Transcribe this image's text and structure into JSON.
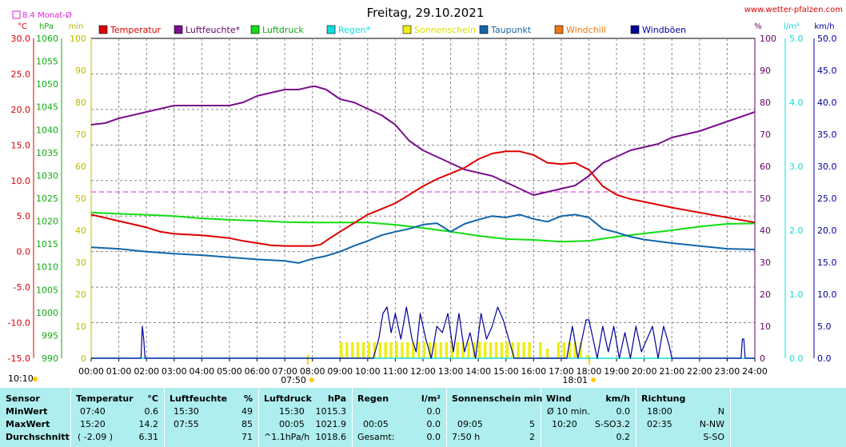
{
  "header": {
    "title": "Freitag, 29.10.2021",
    "site": "www.wetter-pfalzen.com",
    "monthly_avg": "8.4 Monat-Ø"
  },
  "axes": {
    "left_units": [
      "°C",
      "hPa",
      "min"
    ],
    "right_units": [
      "%",
      "l/m²",
      "km/h"
    ],
    "temp_ticks": [
      "30.0",
      "25.0",
      "20.0",
      "15.0",
      "10.0",
      "5.0",
      "0.0",
      "-5.0",
      "-10.0",
      "-15.0"
    ],
    "hpa_ticks": [
      "1060",
      "1055",
      "1050",
      "1045",
      "1040",
      "1035",
      "1030",
      "1025",
      "1020",
      "1015",
      "1010",
      "1005",
      "1000",
      "995",
      "990"
    ],
    "min_ticks": [
      "100",
      "90",
      "80",
      "70",
      "60",
      "50",
      "40",
      "30",
      "20",
      "10",
      "0"
    ],
    "pct_ticks": [
      "100",
      "90",
      "80",
      "70",
      "60",
      "50",
      "40",
      "30",
      "20",
      "10",
      "0"
    ],
    "rain_ticks": [
      "5.0",
      "4.0",
      "3.0",
      "2.0",
      "1.0",
      "0.0"
    ],
    "wind_ticks": [
      "50.0",
      "45.0",
      "40.0",
      "35.0",
      "30.0",
      "25.0",
      "20.0",
      "15.0",
      "10.0",
      "5.0",
      "0.0"
    ],
    "x_ticks": [
      "00:00",
      "01:00",
      "02:00",
      "03:00",
      "04:00",
      "05:00",
      "06:00",
      "07:00",
      "08:00",
      "09:00",
      "10:00",
      "11:00",
      "12:00",
      "13:00",
      "14:00",
      "15:00",
      "16:00",
      "17:00",
      "18:00",
      "19:00",
      "20:00",
      "21:00",
      "22:00",
      "23:00",
      "24:00"
    ],
    "sunrise": "07:50",
    "sunset": "18:01",
    "left_bottom_time": "10:10"
  },
  "colors": {
    "temperature": "#dd0000",
    "humidity": "#7a0f8c",
    "pressure": "#11dd11",
    "rain": "#11dddd",
    "sunshine": "#eeee11",
    "dewpoint": "#1166aa",
    "windchill": "#ee7711",
    "gusts": "#000099",
    "monthly_avg": "#dd22dd",
    "table_bg": "#aeeeee"
  },
  "chart_data": {
    "type": "line",
    "title": "Freitag, 29.10.2021",
    "x_unit": "hours",
    "xlim": [
      0,
      24
    ],
    "legend": [
      "Temperatur",
      "Luftfeuchte*",
      "Luftdruck",
      "Regen*",
      "Sonnenschein",
      "Taupunkt",
      "Windchill",
      "Windböen"
    ],
    "ylim": {
      "temp": [
        -15,
        30
      ],
      "pressure": [
        990,
        1060
      ],
      "minutes": [
        0,
        100
      ],
      "humidity": [
        0,
        100
      ],
      "rain": [
        0,
        5
      ],
      "wind": [
        0,
        50
      ]
    },
    "monthly_avg_temp": 8.4,
    "series": [
      {
        "name": "Temperatur",
        "axis": "temp",
        "x": [
          0,
          1,
          2,
          2.5,
          3,
          4,
          5,
          5.5,
          6,
          6.5,
          7,
          7.5,
          8,
          8.3,
          8.6,
          9,
          9.5,
          10,
          10.5,
          11,
          11.5,
          12,
          12.5,
          13,
          13.5,
          14,
          14.5,
          15,
          15.5,
          16,
          16.5,
          17,
          17.5,
          18,
          18.5,
          19,
          19.5,
          20,
          20.5,
          21,
          22,
          23,
          24
        ],
        "y": [
          5.2,
          4.3,
          3.4,
          2.8,
          2.5,
          2.3,
          1.9,
          1.5,
          1.2,
          0.9,
          0.8,
          0.8,
          0.8,
          1.0,
          1.8,
          2.8,
          4.0,
          5.2,
          6.0,
          6.8,
          8.0,
          9.2,
          10.2,
          11.0,
          11.8,
          13.0,
          13.8,
          14.1,
          14.1,
          13.6,
          12.5,
          12.3,
          12.5,
          11.5,
          9.2,
          8.0,
          7.4,
          7.0,
          6.6,
          6.2,
          5.5,
          4.8,
          4.1
        ]
      },
      {
        "name": "Luftfeuchte*",
        "axis": "humidity",
        "x": [
          0,
          0.5,
          1,
          2,
          3,
          4,
          5,
          5.5,
          6,
          6.5,
          7,
          7.5,
          8,
          8.1,
          8.5,
          9,
          9.5,
          10,
          10.5,
          11,
          11.5,
          12,
          12.5,
          13,
          13.5,
          14,
          14.5,
          15,
          15.5,
          16,
          16.5,
          17,
          17.5,
          18,
          18.5,
          19,
          19.5,
          20,
          20.5,
          21,
          22,
          23,
          24
        ],
        "y": [
          73,
          73.5,
          75,
          77,
          79,
          79,
          79,
          80,
          82,
          83,
          84,
          84,
          85,
          85,
          84,
          81,
          80,
          78,
          76,
          73,
          68,
          65,
          63,
          61,
          59,
          58,
          57,
          55,
          53,
          51,
          52,
          53,
          54,
          57,
          61,
          63,
          65,
          66,
          67,
          69,
          71,
          74,
          77
        ]
      },
      {
        "name": "Luftdruck",
        "axis": "pressure",
        "x": [
          0,
          1,
          2,
          3,
          4,
          5,
          6,
          7,
          8,
          9,
          10,
          11,
          12,
          13,
          14,
          15,
          16,
          17,
          18,
          19,
          20,
          21,
          22,
          23,
          24
        ],
        "y": [
          1021.9,
          1021.6,
          1021.4,
          1021.1,
          1020.6,
          1020.3,
          1020.1,
          1019.8,
          1019.7,
          1019.7,
          1019.7,
          1019.2,
          1018.5,
          1017.7,
          1016.8,
          1016.1,
          1015.9,
          1015.5,
          1015.7,
          1016.6,
          1017.3,
          1018.0,
          1018.8,
          1019.4,
          1019.5
        ]
      },
      {
        "name": "Taupunkt",
        "axis": "temp",
        "x": [
          0,
          1,
          2,
          3,
          4,
          5,
          6,
          7,
          7.5,
          8,
          8.5,
          9,
          9.5,
          10,
          10.5,
          11,
          11.5,
          12,
          12.5,
          13,
          13.5,
          14,
          14.5,
          15,
          15.5,
          16,
          16.5,
          17,
          17.5,
          18,
          18.5,
          19,
          19.5,
          20,
          21,
          22,
          23,
          24
        ],
        "y": 0,
        "values": [
          0.6,
          0.4,
          0.0,
          -0.3,
          -0.5,
          -0.8,
          -1.1,
          -1.3,
          -1.6,
          -1.0,
          -0.6,
          0.0,
          0.8,
          1.5,
          2.3,
          2.8,
          3.2,
          3.8,
          4.0,
          2.8,
          3.9,
          4.5,
          5.0,
          4.8,
          5.2,
          4.6,
          4.2,
          5.0,
          5.2,
          4.8,
          3.2,
          2.7,
          2.1,
          1.7,
          1.2,
          0.8,
          0.4,
          0.3
        ]
      },
      {
        "name": "Windböen",
        "axis": "wind",
        "x": [
          0,
          1.8,
          1.85,
          1.9,
          1.95,
          2.0,
          10.2,
          10.4,
          10.55,
          10.7,
          10.85,
          11.0,
          11.2,
          11.4,
          11.6,
          11.75,
          11.9,
          12.1,
          12.3,
          12.5,
          12.7,
          12.9,
          13.1,
          13.3,
          13.5,
          13.7,
          13.9,
          14.1,
          14.3,
          14.5,
          14.7,
          14.9,
          15.1,
          15.3,
          15.7,
          17.2,
          17.4,
          17.6,
          17.8,
          17.9,
          18.0,
          18.15,
          18.3,
          18.5,
          18.7,
          18.9,
          19.1,
          19.3,
          19.5,
          19.7,
          19.9,
          20.1,
          20.3,
          20.5,
          20.7,
          20.9,
          21.0,
          23.5,
          23.55,
          23.6,
          23.65,
          23.7,
          24
        ],
        "y": [
          0,
          0,
          5,
          3,
          0,
          0,
          0,
          3,
          7,
          8,
          4,
          7,
          3,
          8,
          3,
          1,
          7,
          3,
          0,
          5,
          4,
          7,
          1,
          7,
          1,
          4,
          0,
          7,
          3,
          5,
          8,
          6,
          3,
          0,
          0,
          0,
          5,
          0,
          4,
          6,
          6,
          3,
          0,
          5,
          1,
          5,
          0,
          4,
          0,
          5,
          1,
          3,
          5,
          0,
          5,
          2,
          0,
          0,
          3,
          3,
          0,
          0,
          0
        ]
      },
      {
        "name": "Regen*",
        "axis": "rain",
        "x": [
          0,
          24
        ],
        "y": [
          0,
          0
        ]
      },
      {
        "name": "Sonnenschein",
        "axis": "minutes",
        "x": [
          7.85,
          9.05,
          9.25,
          9.45,
          9.65,
          9.85,
          10.05,
          10.25,
          10.45,
          10.65,
          10.85,
          11.05,
          11.25,
          11.45,
          11.65,
          11.85,
          12.05,
          12.25,
          12.45,
          12.65,
          12.85,
          13.05,
          13.25,
          13.45,
          13.65,
          13.85,
          14.05,
          14.25,
          14.45,
          14.65,
          14.85,
          15.05,
          15.25,
          15.45,
          15.65,
          15.85,
          16.25,
          16.5,
          16.9,
          17.1,
          17.3,
          17.5,
          17.7,
          17.95
        ],
        "y": [
          1,
          5,
          5,
          5,
          5,
          5,
          5,
          5,
          5,
          5,
          5,
          5,
          5,
          5,
          5,
          5,
          5,
          5,
          5,
          5,
          5,
          5,
          5,
          5,
          5,
          5,
          5,
          5,
          5,
          5,
          5,
          5,
          5,
          5,
          5,
          5,
          5,
          3,
          5,
          5,
          5,
          5,
          5,
          1
        ]
      }
    ]
  },
  "table": {
    "row_labels": [
      "Sensor",
      "MinWert",
      "MaxWert",
      "Durchschnitt"
    ],
    "temperatur": {
      "title": "Temperatur",
      "unit": "°C",
      "min_time": "07:40",
      "min_val": "0.6",
      "max_time": "15:20",
      "max_val": "14.2",
      "avg_note": "( -2.09 )",
      "avg_val": "6.31"
    },
    "luftfeuchte": {
      "title": "Luftfeuchte",
      "unit": "%",
      "min_time": "15:30",
      "min_val": "49",
      "max_time": "07:55",
      "max_val": "85",
      "avg_val": "71"
    },
    "luftdruck": {
      "title": "Luftdruck",
      "unit": "hPa",
      "min_time": "15:30",
      "min_val": "1015.3",
      "max_time": "00:05",
      "max_val": "1021.9",
      "avg_note": "^1.1hPa/h",
      "avg_val": "1018.6"
    },
    "regen": {
      "title": "Regen",
      "unit": "l/m²",
      "min_val": "0.0",
      "max_time": "00:05",
      "max_val": "0.0",
      "avg_note": "Gesamt:",
      "avg_val": "0.0"
    },
    "sonne": {
      "title": "Sonnenschein min",
      "max_time": "09:05",
      "max_val": "5",
      "avg_note": "7:50 h",
      "avg_val": "2"
    },
    "wind": {
      "title": "Wind",
      "unit": "km/h",
      "min_label": "Ø 10 min.",
      "min_val": "0.0",
      "max_time": "10:20",
      "max_dir": "S-SO",
      "max_val": "3.2",
      "avg_val": "0.2"
    },
    "richtung": {
      "title": "Richtung",
      "min_time": "18:00",
      "min_val": "N",
      "max_time": "02:35",
      "max_val": "N-NW",
      "avg_val": "S-SO"
    }
  }
}
